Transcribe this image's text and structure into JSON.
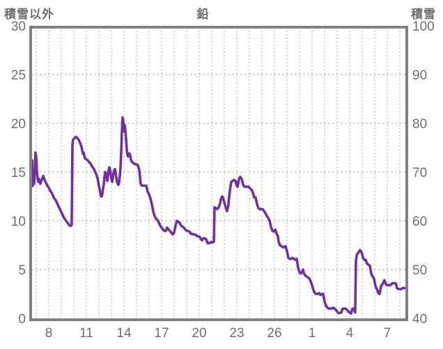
{
  "header": {
    "left_axis_title": "積雪以外",
    "chart_title": "鉛",
    "right_axis_title": "積雪"
  },
  "chart_data": {
    "type": "line",
    "title": "鉛",
    "grid": true,
    "legend_position": "none",
    "left_axis": {
      "title": "積雪以外",
      "min": 0,
      "max": 30,
      "ticks": [
        0,
        5,
        10,
        15,
        20,
        25,
        30
      ]
    },
    "right_axis": {
      "title": "積雪",
      "min": 40,
      "max": 100,
      "ticks": [
        40,
        50,
        60,
        70,
        80,
        90,
        100
      ]
    },
    "x_axis": {
      "tick_labels": [
        "8",
        "11",
        "14",
        "17",
        "20",
        "23",
        "26",
        "1",
        "4",
        "7"
      ],
      "tick_positions_days": [
        0,
        3,
        6,
        9,
        12,
        15,
        18,
        21,
        24,
        27
      ],
      "grid_day_range": [
        -1,
        28
      ],
      "data_day_range": [
        -1.39,
        28.5
      ]
    },
    "series": [
      {
        "name": "鉛",
        "color": "#7030A0",
        "points": [
          [
            -1.39,
            13.5
          ],
          [
            -1.33,
            16.2
          ],
          [
            -1.28,
            13.6
          ],
          [
            -1.22,
            14.3
          ],
          [
            -1.17,
            13.8
          ],
          [
            -1.11,
            15.2
          ],
          [
            -1.06,
            17.0
          ],
          [
            -1.0,
            16.5
          ],
          [
            -0.94,
            15.0
          ],
          [
            -0.89,
            14.3
          ],
          [
            -0.83,
            14.0
          ],
          [
            -0.78,
            14.3
          ],
          [
            -0.72,
            14.1
          ],
          [
            -0.67,
            13.8
          ],
          [
            -0.56,
            14.2
          ],
          [
            -0.44,
            14.6
          ],
          [
            -0.33,
            14.2
          ],
          [
            -0.22,
            13.9
          ],
          [
            -0.11,
            13.6
          ],
          [
            0,
            13.4
          ],
          [
            0.11,
            13.1
          ],
          [
            0.22,
            12.9
          ],
          [
            0.33,
            12.6
          ],
          [
            0.44,
            12.3
          ],
          [
            0.56,
            12.1
          ],
          [
            0.67,
            11.8
          ],
          [
            0.78,
            11.5
          ],
          [
            0.89,
            11.2
          ],
          [
            1.0,
            10.9
          ],
          [
            1.11,
            10.6
          ],
          [
            1.22,
            10.3
          ],
          [
            1.33,
            10.1
          ],
          [
            1.44,
            9.9
          ],
          [
            1.56,
            9.7
          ],
          [
            1.67,
            9.5
          ],
          [
            1.78,
            9.5
          ],
          [
            1.83,
            9.6
          ],
          [
            1.89,
            17.8
          ],
          [
            1.94,
            18.3
          ],
          [
            2.06,
            18.5
          ],
          [
            2.17,
            18.6
          ],
          [
            2.28,
            18.5
          ],
          [
            2.39,
            18.3
          ],
          [
            2.5,
            18.0
          ],
          [
            2.61,
            17.6
          ],
          [
            2.67,
            17.2
          ],
          [
            2.72,
            16.9
          ],
          [
            2.78,
            17.0
          ],
          [
            2.83,
            16.7
          ],
          [
            2.89,
            16.4
          ],
          [
            3.0,
            16.3
          ],
          [
            3.11,
            16.2
          ],
          [
            3.22,
            16.0
          ],
          [
            3.33,
            15.9
          ],
          [
            3.44,
            15.6
          ],
          [
            3.56,
            15.4
          ],
          [
            3.67,
            15.1
          ],
          [
            3.78,
            14.8
          ],
          [
            3.89,
            14.4
          ],
          [
            4.0,
            13.6
          ],
          [
            4.11,
            12.9
          ],
          [
            4.17,
            12.5
          ],
          [
            4.22,
            12.5
          ],
          [
            4.28,
            12.8
          ],
          [
            4.33,
            13.3
          ],
          [
            4.39,
            13.7
          ],
          [
            4.44,
            14.5
          ],
          [
            4.5,
            15.0
          ],
          [
            4.56,
            14.9
          ],
          [
            4.61,
            14.5
          ],
          [
            4.67,
            14.1
          ],
          [
            4.72,
            14.6
          ],
          [
            4.78,
            15.2
          ],
          [
            4.83,
            15.5
          ],
          [
            4.89,
            15.3
          ],
          [
            4.94,
            14.8
          ],
          [
            5.0,
            14.3
          ],
          [
            5.06,
            14.0
          ],
          [
            5.11,
            14.4
          ],
          [
            5.17,
            14.9
          ],
          [
            5.22,
            15.2
          ],
          [
            5.28,
            15.3
          ],
          [
            5.33,
            15.0
          ],
          [
            5.39,
            14.5
          ],
          [
            5.44,
            14.0
          ],
          [
            5.5,
            13.8
          ],
          [
            5.56,
            13.7
          ],
          [
            5.61,
            14.0
          ],
          [
            5.67,
            14.6
          ],
          [
            5.72,
            15.5
          ],
          [
            5.78,
            17.0
          ],
          [
            5.83,
            19.0
          ],
          [
            5.89,
            20.6
          ],
          [
            5.94,
            20.3
          ],
          [
            6.0,
            19.2
          ],
          [
            6.06,
            19.8
          ],
          [
            6.11,
            19.3
          ],
          [
            6.17,
            18.3
          ],
          [
            6.22,
            17.3
          ],
          [
            6.28,
            16.8
          ],
          [
            6.33,
            16.6
          ],
          [
            6.39,
            16.8
          ],
          [
            6.44,
            16.9
          ],
          [
            6.5,
            16.7
          ],
          [
            6.56,
            16.2
          ],
          [
            6.67,
            16.0
          ],
          [
            6.78,
            15.9
          ],
          [
            6.89,
            15.8
          ],
          [
            7.0,
            15.8
          ],
          [
            7.11,
            15.7
          ],
          [
            7.22,
            15.2
          ],
          [
            7.33,
            13.8
          ],
          [
            7.44,
            13.6
          ],
          [
            7.56,
            13.6
          ],
          [
            7.67,
            13.6
          ],
          [
            7.78,
            13.6
          ],
          [
            7.89,
            13.0
          ],
          [
            8.0,
            12.7
          ],
          [
            8.11,
            12.3
          ],
          [
            8.22,
            11.7
          ],
          [
            8.33,
            11.0
          ],
          [
            8.44,
            10.5
          ],
          [
            8.56,
            10.2
          ],
          [
            8.72,
            10.0
          ],
          [
            8.89,
            9.5
          ],
          [
            9.06,
            9.2
          ],
          [
            9.17,
            9.0
          ],
          [
            9.33,
            8.95
          ],
          [
            9.44,
            9.3
          ],
          [
            9.56,
            9.1
          ],
          [
            9.67,
            8.95
          ],
          [
            9.78,
            8.8
          ],
          [
            9.89,
            8.6
          ],
          [
            10.0,
            8.8
          ],
          [
            10.11,
            9.5
          ],
          [
            10.22,
            10.0
          ],
          [
            10.33,
            9.9
          ],
          [
            10.44,
            9.8
          ],
          [
            10.56,
            9.5
          ],
          [
            10.67,
            9.4
          ],
          [
            10.78,
            9.3
          ],
          [
            10.89,
            9.1
          ],
          [
            11.0,
            9.0
          ],
          [
            11.11,
            8.95
          ],
          [
            11.22,
            8.9
          ],
          [
            11.33,
            8.7
          ],
          [
            11.44,
            8.65
          ],
          [
            11.56,
            8.6
          ],
          [
            11.67,
            8.6
          ],
          [
            11.78,
            8.5
          ],
          [
            11.89,
            8.4
          ],
          [
            12.0,
            8.4
          ],
          [
            12.11,
            8.2
          ],
          [
            12.22,
            8.0
          ],
          [
            12.33,
            8.2
          ],
          [
            12.44,
            8.2
          ],
          [
            12.56,
            8.1
          ],
          [
            12.67,
            7.7
          ],
          [
            12.78,
            7.7
          ],
          [
            12.89,
            7.8
          ],
          [
            13.0,
            7.8
          ],
          [
            13.11,
            7.8
          ],
          [
            13.17,
            7.9
          ],
          [
            13.22,
            11.4
          ],
          [
            13.33,
            11.3
          ],
          [
            13.44,
            11.2
          ],
          [
            13.56,
            11.4
          ],
          [
            13.67,
            11.8
          ],
          [
            13.72,
            12.2
          ],
          [
            13.83,
            12.5
          ],
          [
            13.89,
            12.4
          ],
          [
            14.0,
            11.9
          ],
          [
            14.11,
            11.4
          ],
          [
            14.22,
            11.0
          ],
          [
            14.33,
            11.6
          ],
          [
            14.39,
            12.5
          ],
          [
            14.5,
            13.6
          ],
          [
            14.56,
            14.0
          ],
          [
            14.67,
            14.1
          ],
          [
            14.78,
            14.2
          ],
          [
            14.89,
            14.1
          ],
          [
            15.0,
            13.6
          ],
          [
            15.06,
            13.5
          ],
          [
            15.17,
            14.3
          ],
          [
            15.28,
            14.5
          ],
          [
            15.39,
            14.3
          ],
          [
            15.5,
            13.7
          ],
          [
            15.61,
            13.5
          ],
          [
            15.72,
            13.5
          ],
          [
            15.83,
            13.5
          ],
          [
            15.94,
            13.5
          ],
          [
            16.06,
            13.3
          ],
          [
            16.17,
            13.2
          ],
          [
            16.28,
            12.9
          ],
          [
            16.39,
            12.4
          ],
          [
            16.5,
            12.4
          ],
          [
            16.61,
            11.7
          ],
          [
            16.72,
            11.3
          ],
          [
            16.83,
            11.2
          ],
          [
            16.94,
            11.2
          ],
          [
            17.06,
            11.2
          ],
          [
            17.17,
            11.0
          ],
          [
            17.28,
            10.8
          ],
          [
            17.39,
            10.5
          ],
          [
            17.5,
            10.3
          ],
          [
            17.61,
            10.0
          ],
          [
            17.72,
            9.4
          ],
          [
            17.83,
            9.0
          ],
          [
            17.94,
            8.9
          ],
          [
            18.06,
            9.1
          ],
          [
            18.17,
            8.7
          ],
          [
            18.28,
            8.4
          ],
          [
            18.33,
            7.9
          ],
          [
            18.44,
            7.5
          ],
          [
            18.56,
            7.4
          ],
          [
            18.67,
            7.3
          ],
          [
            18.78,
            7.3
          ],
          [
            18.89,
            7.4
          ],
          [
            19.0,
            6.9
          ],
          [
            19.11,
            6.2
          ],
          [
            19.22,
            6.1
          ],
          [
            19.33,
            6.1
          ],
          [
            19.44,
            6.2
          ],
          [
            19.56,
            6.1
          ],
          [
            19.67,
            6.0
          ],
          [
            19.78,
            6.1
          ],
          [
            19.89,
            5.2
          ],
          [
            20.0,
            4.7
          ],
          [
            20.11,
            4.6
          ],
          [
            20.22,
            4.8
          ],
          [
            20.28,
            5.0
          ],
          [
            20.33,
            4.7
          ],
          [
            20.44,
            4.4
          ],
          [
            20.56,
            4.3
          ],
          [
            20.67,
            4.2
          ],
          [
            20.78,
            4.1
          ],
          [
            20.89,
            3.8
          ],
          [
            21.0,
            3.4
          ],
          [
            21.11,
            2.9
          ],
          [
            21.22,
            2.6
          ],
          [
            21.33,
            2.5
          ],
          [
            21.44,
            2.5
          ],
          [
            21.56,
            2.6
          ],
          [
            21.67,
            2.4
          ],
          [
            21.78,
            2.5
          ],
          [
            21.89,
            2.5
          ],
          [
            22.0,
            1.7
          ],
          [
            22.11,
            1.3
          ],
          [
            22.22,
            1.1
          ],
          [
            22.33,
            1.0
          ],
          [
            22.44,
            1.0
          ],
          [
            22.56,
            1.0
          ],
          [
            22.67,
            1.1
          ],
          [
            22.78,
            1.0
          ],
          [
            22.89,
            0.9
          ],
          [
            23.0,
            0.7
          ],
          [
            23.11,
            0.55
          ],
          [
            23.22,
            0.55
          ],
          [
            23.33,
            0.6
          ],
          [
            23.44,
            1.0
          ],
          [
            23.56,
            1.0
          ],
          [
            23.67,
            1.0
          ],
          [
            23.78,
            0.9
          ],
          [
            23.89,
            0.7
          ],
          [
            24.0,
            0.6
          ],
          [
            24.11,
            0.5
          ],
          [
            24.22,
            1.0
          ],
          [
            24.33,
            1.0
          ],
          [
            24.39,
            0.8
          ],
          [
            24.44,
            0.6
          ],
          [
            24.5,
            5.8
          ],
          [
            24.56,
            6.5
          ],
          [
            24.67,
            6.7
          ],
          [
            24.78,
            6.9
          ],
          [
            24.83,
            7.0
          ],
          [
            24.89,
            6.9
          ],
          [
            25.0,
            6.6
          ],
          [
            25.06,
            6.2
          ],
          [
            25.17,
            6.0
          ],
          [
            25.28,
            6.0
          ],
          [
            25.39,
            5.6
          ],
          [
            25.5,
            5.5
          ],
          [
            25.61,
            5.4
          ],
          [
            25.72,
            4.6
          ],
          [
            25.83,
            4.3
          ],
          [
            25.94,
            4.1
          ],
          [
            26.06,
            3.3
          ],
          [
            26.17,
            3.0
          ],
          [
            26.28,
            2.6
          ],
          [
            26.39,
            2.5
          ],
          [
            26.5,
            3.3
          ],
          [
            26.61,
            3.5
          ],
          [
            26.72,
            3.8
          ],
          [
            26.78,
            3.9
          ],
          [
            26.89,
            3.5
          ],
          [
            27.0,
            3.4
          ],
          [
            27.11,
            3.4
          ],
          [
            27.22,
            3.4
          ],
          [
            27.33,
            3.5
          ],
          [
            27.44,
            3.6
          ],
          [
            27.56,
            3.6
          ],
          [
            27.67,
            3.6
          ],
          [
            27.78,
            3.1
          ],
          [
            27.89,
            3.0
          ],
          [
            28.0,
            3.0
          ],
          [
            28.11,
            3.0
          ],
          [
            28.22,
            3.1
          ],
          [
            28.33,
            3.1
          ],
          [
            28.5,
            3.1
          ]
        ]
      }
    ]
  },
  "colors": {
    "line": "#7030A0",
    "border": "#808080",
    "gridline": "#ababab",
    "text": "#6e6e6e",
    "background": "#ffffff"
  }
}
